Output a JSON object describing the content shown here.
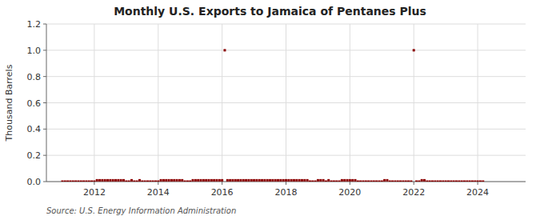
{
  "chart_data": {
    "type": "scatter",
    "title": "Monthly U.S. Exports to Jamaica of Pentanes Plus",
    "ylabel": "Thousand Barrels",
    "annotations": [
      "Source: U.S. Energy Information Administration"
    ],
    "color": "#8b0000",
    "marker": "square",
    "grid": true,
    "xlim": [
      2010.5,
      2025.5
    ],
    "ylim": [
      0,
      1.2
    ],
    "xticks": [
      2012,
      2014,
      2016,
      2018,
      2020,
      2022,
      2024
    ],
    "yticks": [
      {
        "value": 0.0,
        "label": "0.0"
      },
      0.2,
      0.4,
      0.6,
      0.8,
      {
        "value": 1.0,
        "label": "1.0"
      },
      1.2
    ],
    "x": [
      2011.0,
      2011.083,
      2011.167,
      2011.25,
      2011.333,
      2011.417,
      2011.5,
      2011.583,
      2011.667,
      2011.75,
      2011.833,
      2011.917,
      2012.0,
      2012.083,
      2012.167,
      2012.25,
      2012.333,
      2012.417,
      2012.5,
      2012.583,
      2012.667,
      2012.75,
      2012.833,
      2012.917,
      2013.0,
      2013.083,
      2013.167,
      2013.25,
      2013.333,
      2013.417,
      2013.5,
      2013.583,
      2013.667,
      2013.75,
      2013.833,
      2013.917,
      2014.0,
      2014.083,
      2014.167,
      2014.25,
      2014.333,
      2014.417,
      2014.5,
      2014.583,
      2014.667,
      2014.75,
      2014.833,
      2014.917,
      2015.0,
      2015.083,
      2015.167,
      2015.25,
      2015.333,
      2015.417,
      2015.5,
      2015.583,
      2015.667,
      2015.75,
      2015.833,
      2015.917,
      2016.0,
      2016.083,
      2016.167,
      2016.25,
      2016.333,
      2016.417,
      2016.5,
      2016.583,
      2016.667,
      2016.75,
      2016.833,
      2016.917,
      2017.0,
      2017.083,
      2017.167,
      2017.25,
      2017.333,
      2017.417,
      2017.5,
      2017.583,
      2017.667,
      2017.75,
      2017.833,
      2017.917,
      2018.0,
      2018.083,
      2018.167,
      2018.25,
      2018.333,
      2018.417,
      2018.5,
      2018.583,
      2018.667,
      2018.75,
      2018.833,
      2018.917,
      2019.0,
      2019.083,
      2019.167,
      2019.25,
      2019.333,
      2019.417,
      2019.5,
      2019.583,
      2019.667,
      2019.75,
      2019.833,
      2019.917,
      2020.0,
      2020.083,
      2020.167,
      2020.25,
      2020.333,
      2020.417,
      2020.5,
      2020.583,
      2020.667,
      2020.75,
      2020.833,
      2020.917,
      2021.0,
      2021.083,
      2021.167,
      2021.25,
      2021.333,
      2021.417,
      2021.5,
      2021.583,
      2021.667,
      2021.75,
      2021.833,
      2021.917,
      2022.0,
      2022.083,
      2022.167,
      2022.25,
      2022.333,
      2022.417,
      2022.5,
      2022.583,
      2022.667,
      2022.75,
      2022.833,
      2022.917,
      2023.0,
      2023.083,
      2023.167,
      2023.25,
      2023.333,
      2023.417,
      2023.5,
      2023.583,
      2023.667,
      2023.75,
      2023.833,
      2023.917,
      2024.0,
      2024.083,
      2024.167
    ],
    "values": [
      0,
      0,
      0,
      0,
      0,
      0,
      0,
      0,
      0,
      0,
      0,
      0,
      0,
      0.01,
      0.01,
      0.01,
      0.01,
      0.01,
      0.01,
      0.01,
      0.01,
      0.01,
      0.01,
      0.01,
      0,
      0,
      0.01,
      0,
      0,
      0.01,
      0,
      0,
      0,
      0,
      0,
      0,
      0,
      0.01,
      0.01,
      0.01,
      0.01,
      0.01,
      0.01,
      0.01,
      0.01,
      0.01,
      0,
      0,
      0,
      0.01,
      0.01,
      0.01,
      0.01,
      0.01,
      0.01,
      0.01,
      0.01,
      0.01,
      0.01,
      0.01,
      0.01,
      1.0,
      0.01,
      0.01,
      0.01,
      0.01,
      0.01,
      0.01,
      0.01,
      0.01,
      0.01,
      0.01,
      0.01,
      0.01,
      0.01,
      0.01,
      0.01,
      0.01,
      0.01,
      0.01,
      0.01,
      0.01,
      0.01,
      0.01,
      0.01,
      0.01,
      0.01,
      0.01,
      0.01,
      0.01,
      0.01,
      0.01,
      0.01,
      0,
      0,
      0,
      0.01,
      0.01,
      0.01,
      0,
      0.01,
      0,
      0,
      0,
      0,
      0.01,
      0.01,
      0.01,
      0.01,
      0.01,
      0.01,
      0,
      0,
      0,
      0,
      0,
      0,
      0,
      0,
      0,
      0,
      0.01,
      0.01,
      0,
      0,
      0,
      0,
      0,
      0,
      0,
      0,
      0,
      1.0,
      0,
      0,
      0.01,
      0.01,
      0,
      0,
      0,
      0,
      0,
      0,
      0,
      0,
      0,
      0,
      0,
      0,
      0,
      0,
      0,
      0,
      0,
      0,
      0,
      0,
      0,
      0
    ]
  }
}
